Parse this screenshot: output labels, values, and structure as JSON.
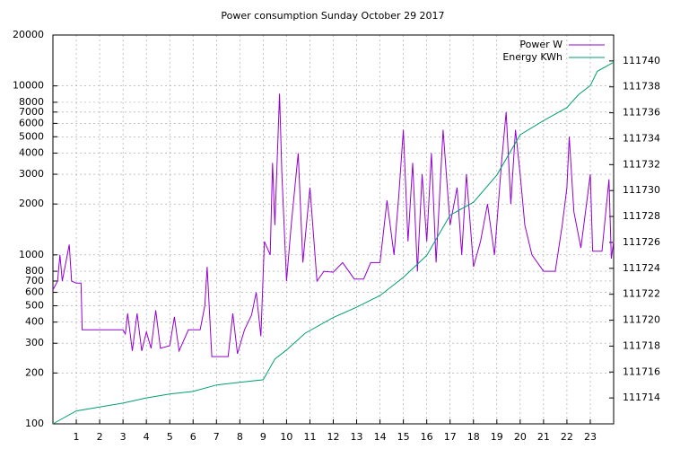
{
  "chart_data": {
    "type": "line",
    "title": "Power consumption Sunday October 29 2017",
    "xlim": [
      0,
      24
    ],
    "xticks": [
      1,
      2,
      3,
      4,
      5,
      6,
      7,
      8,
      9,
      10,
      11,
      12,
      13,
      14,
      15,
      16,
      17,
      18,
      19,
      20,
      21,
      22,
      23
    ],
    "ylim": [
      100,
      20000
    ],
    "ylog": true,
    "yticks": [
      100,
      200,
      300,
      400,
      500,
      600,
      700,
      800,
      1000,
      2000,
      3000,
      4000,
      5000,
      6000,
      7000,
      8000,
      10000,
      20000
    ],
    "y2lim": [
      111712,
      111742
    ],
    "y2ticks": [
      111714,
      111716,
      111718,
      111720,
      111722,
      111724,
      111726,
      111728,
      111730,
      111732,
      111734,
      111736,
      111738,
      111740
    ],
    "grid": true,
    "legend": "top-right",
    "series": [
      {
        "name": "Power W",
        "color": "#9400d3",
        "x": [
          0.0,
          0.2,
          0.3,
          0.4,
          0.7,
          0.8,
          1.0,
          1.2,
          1.25,
          3.0,
          3.1,
          3.2,
          3.4,
          3.6,
          3.8,
          4.0,
          4.2,
          4.4,
          4.6,
          5.0,
          5.2,
          5.4,
          5.8,
          6.3,
          6.5,
          6.6,
          6.8,
          7.5,
          7.7,
          7.9,
          8.2,
          8.5,
          8.7,
          8.9,
          9.05,
          9.3,
          9.4,
          9.5,
          9.7,
          9.8,
          10.0,
          10.2,
          10.5,
          10.7,
          11.0,
          11.3,
          11.6,
          12.0,
          12.4,
          12.9,
          13.3,
          13.6,
          14.0,
          14.3,
          14.6,
          14.8,
          15.0,
          15.2,
          15.4,
          15.6,
          15.8,
          16.0,
          16.2,
          16.4,
          16.7,
          17.0,
          17.3,
          17.5,
          17.7,
          18.0,
          18.3,
          18.6,
          18.9,
          19.2,
          19.4,
          19.6,
          19.8,
          20.0,
          20.2,
          20.5,
          21.0,
          21.5,
          21.8,
          22.0,
          22.1,
          22.3,
          22.6,
          23.0,
          23.1,
          23.5,
          23.8,
          23.9,
          24.0
        ],
        "values": [
          620,
          700,
          1000,
          700,
          1150,
          700,
          680,
          680,
          360,
          360,
          340,
          450,
          270,
          450,
          270,
          350,
          280,
          470,
          280,
          290,
          430,
          270,
          360,
          360,
          500,
          850,
          250,
          250,
          450,
          260,
          360,
          440,
          600,
          330,
          1200,
          1000,
          3500,
          1500,
          9000,
          3000,
          700,
          1500,
          4000,
          900,
          2500,
          700,
          800,
          790,
          900,
          720,
          720,
          900,
          900,
          2100,
          1000,
          2200,
          5500,
          1200,
          3500,
          800,
          3000,
          1200,
          4000,
          900,
          5500,
          1500,
          2500,
          1000,
          3000,
          850,
          1200,
          2000,
          1000,
          3500,
          7000,
          2000,
          5500,
          3000,
          1500,
          1000,
          800,
          800,
          1500,
          2500,
          5000,
          1800,
          1100,
          3000,
          1050,
          1050,
          2800,
          950,
          1200
        ]
      },
      {
        "name": "Energy KWh",
        "color": "#009e73",
        "axis": "y2",
        "x": [
          0,
          1,
          2,
          3,
          4,
          5,
          6,
          7,
          8,
          9,
          9.5,
          10,
          10.8,
          12,
          13,
          14,
          15,
          16,
          17,
          18,
          19,
          20,
          21,
          22,
          22.5,
          23,
          23.3,
          24
        ],
        "values": [
          111712,
          111713.0,
          111713.3,
          111713.6,
          111714.0,
          111714.3,
          111714.5,
          111715.0,
          111715.2,
          111715.4,
          111717.0,
          111717.7,
          111719.0,
          111720.2,
          111721.0,
          111721.9,
          111723.3,
          111725.0,
          111728.1,
          111729.1,
          111731.2,
          111734.3,
          111735.4,
          111736.4,
          111737.4,
          111738.1,
          111739.2,
          111739.9
        ]
      }
    ]
  }
}
